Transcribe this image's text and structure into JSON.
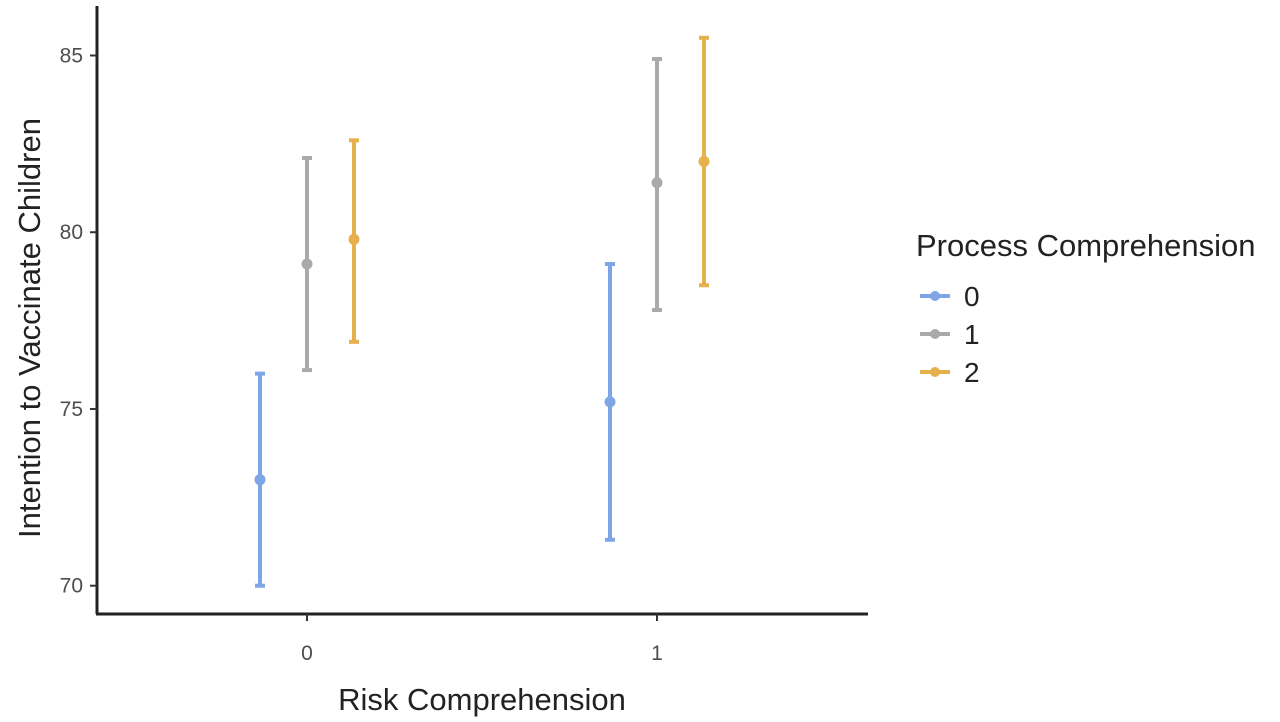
{
  "chart_data": {
    "type": "errorbar",
    "xlabel": "Risk Comprehension",
    "ylabel": "Intention to Vaccinate Children",
    "categories": [
      "0",
      "1"
    ],
    "y_ticks": [
      "70",
      "75",
      "80",
      "85"
    ],
    "ylim": [
      69.2,
      86.4
    ],
    "legend": {
      "title": "Process Comprehension",
      "placement": "right"
    },
    "series": [
      {
        "name": "0",
        "color": "#7ea6e6",
        "points": [
          {
            "x": "0",
            "mean": 73.0,
            "lower": 70.0,
            "upper": 76.0
          },
          {
            "x": "1",
            "mean": 75.2,
            "lower": 71.3,
            "upper": 79.1
          }
        ]
      },
      {
        "name": "1",
        "color": "#aaaaaa",
        "points": [
          {
            "x": "0",
            "mean": 79.1,
            "lower": 76.1,
            "upper": 82.1
          },
          {
            "x": "1",
            "mean": 81.4,
            "lower": 77.8,
            "upper": 84.9
          }
        ]
      },
      {
        "name": "2",
        "color": "#e6b04d",
        "points": [
          {
            "x": "0",
            "mean": 79.8,
            "lower": 76.9,
            "upper": 82.6
          },
          {
            "x": "1",
            "mean": 82.0,
            "lower": 78.5,
            "upper": 85.5
          }
        ]
      }
    ]
  }
}
